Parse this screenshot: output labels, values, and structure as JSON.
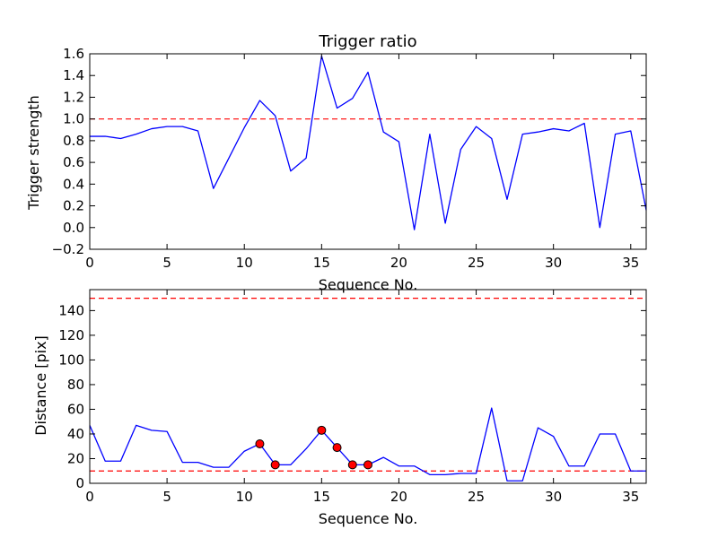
{
  "chart_data": [
    {
      "type": "line",
      "title": "Trigger ratio",
      "xlabel": "Sequence No.",
      "ylabel": "Trigger strength",
      "xlim": [
        0,
        36
      ],
      "ylim": [
        -0.2,
        1.6
      ],
      "xticks": [
        0,
        5,
        10,
        15,
        20,
        25,
        30,
        35
      ],
      "yticks": [
        -0.2,
        0.0,
        0.2,
        0.4,
        0.6,
        0.8,
        1.0,
        1.2,
        1.4,
        1.6
      ],
      "xtick_labels": [
        "0",
        "5",
        "10",
        "15",
        "20",
        "25",
        "30",
        "35"
      ],
      "ytick_labels": [
        "−0.2",
        "0.0",
        "0.2",
        "0.4",
        "0.6",
        "0.8",
        "1.0",
        "1.2",
        "1.4",
        "1.6"
      ],
      "grid": false,
      "series": [
        {
          "color": "#0000ff",
          "style": "solid",
          "x": [
            0,
            1,
            2,
            3,
            4,
            5,
            6,
            7,
            8,
            9,
            10,
            11,
            12,
            13,
            14,
            15,
            16,
            17,
            18,
            19,
            20,
            21,
            22,
            23,
            24,
            25,
            26,
            27,
            28,
            29,
            30,
            31,
            32,
            33,
            34,
            35,
            36
          ],
          "y": [
            0.84,
            0.84,
            0.82,
            0.86,
            0.91,
            0.93,
            0.93,
            0.89,
            0.36,
            0.64,
            0.92,
            1.17,
            1.03,
            0.52,
            0.64,
            1.58,
            1.1,
            1.19,
            1.43,
            0.88,
            0.79,
            -0.02,
            0.86,
            0.04,
            0.72,
            0.93,
            0.82,
            0.26,
            0.86,
            0.88,
            0.91,
            0.89,
            0.96,
            0.0,
            0.86,
            0.89,
            0.16
          ]
        }
      ],
      "reference_lines": [
        {
          "y": 1.0,
          "color": "#ff0000",
          "style": "dashed"
        }
      ]
    },
    {
      "type": "line",
      "title": "",
      "xlabel": "Sequence No.",
      "ylabel": "Distance [pix]",
      "xlim": [
        0,
        36
      ],
      "ylim": [
        0,
        157
      ],
      "xticks": [
        0,
        5,
        10,
        15,
        20,
        25,
        30,
        35
      ],
      "yticks": [
        0,
        20,
        40,
        60,
        80,
        100,
        120,
        140
      ],
      "xtick_labels": [
        "0",
        "5",
        "10",
        "15",
        "20",
        "25",
        "30",
        "35"
      ],
      "ytick_labels": [
        "0",
        "20",
        "40",
        "60",
        "80",
        "100",
        "120",
        "140"
      ],
      "grid": false,
      "series": [
        {
          "color": "#0000ff",
          "style": "solid",
          "x": [
            0,
            1,
            2,
            3,
            4,
            5,
            6,
            7,
            8,
            9,
            10,
            11,
            12,
            13,
            14,
            15,
            16,
            17,
            18,
            19,
            20,
            21,
            22,
            23,
            24,
            25,
            26,
            27,
            28,
            29,
            30,
            31,
            32,
            33,
            34,
            35,
            36
          ],
          "y": [
            47,
            18,
            18,
            47,
            43,
            42,
            17,
            17,
            13,
            13,
            26,
            32,
            15,
            15,
            28,
            43,
            29,
            15,
            15,
            21,
            14,
            14,
            7,
            7,
            8,
            8,
            61,
            2,
            2,
            45,
            38,
            14,
            14,
            40,
            40,
            10,
            10
          ]
        },
        {
          "color": "#ff0000",
          "style": "markers",
          "x": [
            11,
            12,
            15,
            16,
            17,
            18
          ],
          "y": [
            32,
            15,
            43,
            29,
            15,
            15
          ]
        }
      ],
      "reference_lines": [
        {
          "y": 150,
          "color": "#ff0000",
          "style": "dashed"
        },
        {
          "y": 10,
          "color": "#ff0000",
          "style": "dashed"
        }
      ]
    }
  ]
}
